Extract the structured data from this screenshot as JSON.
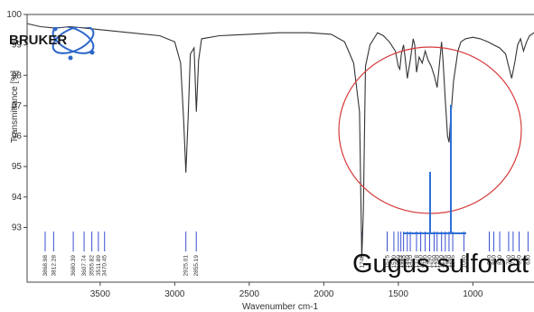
{
  "chart_data": {
    "type": "line",
    "title": "",
    "xlabel": "Wavenumber cm-1",
    "ylabel": "Transmittance [%]",
    "x_reversed": true,
    "xlim": [
      3990,
      590
    ],
    "ylim": [
      91.2,
      100
    ],
    "x_ticks": [
      3500,
      3000,
      2500,
      2000,
      1500,
      1000
    ],
    "y_ticks": [
      93,
      94,
      95,
      96,
      97,
      98,
      99,
      100
    ],
    "grid": false,
    "series": [
      {
        "points": [
          [
            3990,
            99.7
          ],
          [
            3900,
            99.6
          ],
          [
            3800,
            99.55
          ],
          [
            3700,
            99.6
          ],
          [
            3600,
            99.55
          ],
          [
            3500,
            99.5
          ],
          [
            3300,
            99.4
          ],
          [
            3100,
            99.3
          ],
          [
            3000,
            99.1
          ],
          [
            2960,
            98.4
          ],
          [
            2940,
            96.5
          ],
          [
            2925,
            94.8
          ],
          [
            2910,
            96.6
          ],
          [
            2895,
            98.7
          ],
          [
            2870,
            98.9
          ],
          [
            2855,
            96.8
          ],
          [
            2840,
            98.5
          ],
          [
            2820,
            99.2
          ],
          [
            2700,
            99.3
          ],
          [
            2500,
            99.35
          ],
          [
            2300,
            99.4
          ],
          [
            2100,
            99.4
          ],
          [
            1950,
            99.35
          ],
          [
            1860,
            99.1
          ],
          [
            1800,
            98.4
          ],
          [
            1760,
            96.8
          ],
          [
            1745,
            92.0
          ],
          [
            1735,
            93.5
          ],
          [
            1720,
            98.3
          ],
          [
            1690,
            99.0
          ],
          [
            1640,
            99.4
          ],
          [
            1600,
            99.3
          ],
          [
            1560,
            99.1
          ],
          [
            1520,
            98.8
          ],
          [
            1500,
            98.3
          ],
          [
            1490,
            98.2
          ],
          [
            1480,
            98.7
          ],
          [
            1465,
            99.0
          ],
          [
            1455,
            98.6
          ],
          [
            1440,
            97.9
          ],
          [
            1420,
            98.5
          ],
          [
            1400,
            99.2
          ],
          [
            1390,
            99.0
          ],
          [
            1378,
            98.1
          ],
          [
            1360,
            98.6
          ],
          [
            1340,
            98.4
          ],
          [
            1320,
            98.8
          ],
          [
            1300,
            98.5
          ],
          [
            1280,
            98.3
          ],
          [
            1260,
            98.0
          ],
          [
            1240,
            97.6
          ],
          [
            1220,
            98.6
          ],
          [
            1210,
            99.1
          ],
          [
            1200,
            98.5
          ],
          [
            1185,
            97.2
          ],
          [
            1170,
            96.0
          ],
          [
            1160,
            95.8
          ],
          [
            1150,
            96.5
          ],
          [
            1130,
            97.8
          ],
          [
            1100,
            98.8
          ],
          [
            1080,
            99.1
          ],
          [
            1050,
            99.2
          ],
          [
            1000,
            99.25
          ],
          [
            950,
            99.2
          ],
          [
            900,
            99.1
          ],
          [
            860,
            99.0
          ],
          [
            820,
            98.9
          ],
          [
            780,
            98.7
          ],
          [
            760,
            98.3
          ],
          [
            740,
            97.9
          ],
          [
            720,
            98.4
          ],
          [
            700,
            99.0
          ],
          [
            680,
            99.2
          ],
          [
            660,
            98.8
          ],
          [
            640,
            99.1
          ],
          [
            620,
            99.3
          ],
          [
            590,
            99.4
          ]
        ]
      }
    ],
    "peak_labels": [
      "3868.98",
      "3812.28",
      "3680.39",
      "3607.74",
      "3555.82",
      "3511.89",
      "3470.45",
      "2925.01",
      "2855.19",
      "1745",
      "1575",
      "1530",
      "1500",
      "1483",
      "1465",
      "1440",
      "1420",
      "1378",
      "1350",
      "1320",
      "1290",
      "1260",
      "1240",
      "1210",
      "1185",
      "1160",
      "1135",
      "1060",
      "890",
      "860",
      "820",
      "760",
      "730",
      "690",
      "630"
    ]
  },
  "annotation": {
    "text": "Gugus sulfonat"
  },
  "logo": {
    "text": "BRUKER"
  },
  "colors": {
    "spectrum": "#333333",
    "peak_marker": "#3b4fd0",
    "circle": "#d63a3a",
    "callout": "#2f6fd6",
    "logo_blue": "#2d66c8"
  }
}
